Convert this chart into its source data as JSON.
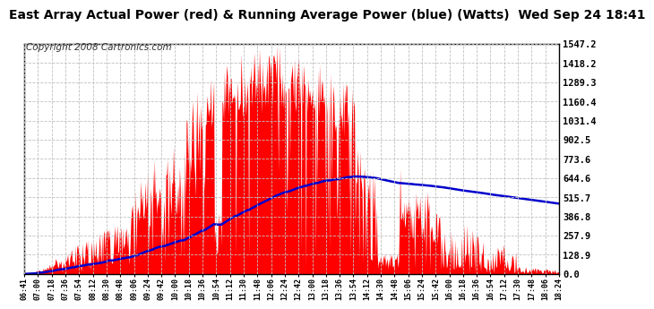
{
  "title": "East Array Actual Power (red) & Running Average Power (blue) (Watts)  Wed Sep 24 18:41",
  "copyright": "Copyright 2008 Cartronics.com",
  "yticks": [
    0.0,
    128.9,
    257.9,
    386.8,
    515.7,
    644.6,
    773.6,
    902.5,
    1031.4,
    1160.4,
    1289.3,
    1418.2,
    1547.2
  ],
  "ymax": 1547.2,
  "xtick_labels": [
    "06:41",
    "07:00",
    "07:18",
    "07:36",
    "07:54",
    "08:12",
    "08:30",
    "08:48",
    "09:06",
    "09:24",
    "09:42",
    "10:00",
    "10:18",
    "10:36",
    "10:54",
    "11:12",
    "11:30",
    "11:48",
    "12:06",
    "12:24",
    "12:42",
    "13:00",
    "13:18",
    "13:36",
    "13:54",
    "14:12",
    "14:30",
    "14:48",
    "15:06",
    "15:24",
    "15:42",
    "16:00",
    "16:18",
    "16:36",
    "16:54",
    "17:12",
    "17:30",
    "17:48",
    "18:06",
    "18:24"
  ],
  "bg_color": "#ffffff",
  "plot_bg_color": "#ffffff",
  "grid_color": "#c0c0c0",
  "fill_color": "#ff0000",
  "line_color": "#0000cc",
  "title_color": "#000000",
  "title_fontsize": 10,
  "copyright_fontsize": 7.5
}
